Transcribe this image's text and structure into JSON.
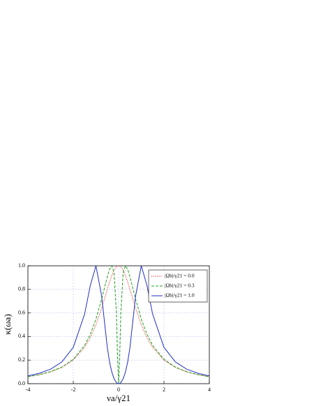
{
  "chart_data": {
    "type": "line",
    "x_label": "νa/γ21",
    "y_label": "κ(ωa)",
    "x": [
      -4,
      -3.5,
      -3,
      -2.5,
      -2,
      -1.5,
      -1.25,
      -1,
      -0.75,
      -0.5,
      -0.4,
      -0.3,
      -0.2,
      -0.1,
      -0.05,
      0,
      0.05,
      0.1,
      0.2,
      0.3,
      0.4,
      0.5,
      0.75,
      1,
      1.25,
      1.5,
      2,
      2.5,
      3,
      3.5,
      4
    ],
    "series": [
      {
        "name": "|Ωb|/γ21 = 0.0",
        "color": "#e03020",
        "style": "dotted",
        "values": [
          0.059,
          0.075,
          0.1,
          0.138,
          0.2,
          0.308,
          0.39,
          0.5,
          0.64,
          0.8,
          0.862,
          0.917,
          0.962,
          0.99,
          0.998,
          1,
          0.998,
          0.99,
          0.962,
          0.917,
          0.862,
          0.8,
          0.64,
          0.5,
          0.39,
          0.308,
          0.2,
          0.138,
          0.1,
          0.075,
          0.059
        ]
      },
      {
        "name": "|Ωb|/γ21 = 0.3",
        "color": "#20a020",
        "style": "dashed",
        "values": [
          0.059,
          0.077,
          0.102,
          0.141,
          0.207,
          0.325,
          0.419,
          0.547,
          0.716,
          0.907,
          0.97,
          1,
          0.941,
          0.61,
          0.246,
          0,
          0.246,
          0.61,
          0.941,
          1,
          0.97,
          0.907,
          0.716,
          0.547,
          0.419,
          0.325,
          0.207,
          0.141,
          0.102,
          0.077,
          0.059
        ]
      },
      {
        "name": "|Ωb|/γ21 = 1.0",
        "color": "#2030c0",
        "style": "solid",
        "values": [
          0.066,
          0.088,
          0.123,
          0.185,
          0.308,
          0.59,
          0.832,
          1,
          0.746,
          0.308,
          0.185,
          0.098,
          0.042,
          0.01,
          0.0025,
          0,
          0.0025,
          0.01,
          0.042,
          0.098,
          0.185,
          0.308,
          0.746,
          1,
          0.832,
          0.59,
          0.308,
          0.185,
          0.123,
          0.088,
          0.066
        ]
      }
    ],
    "xlim": [
      -4,
      4
    ],
    "xticks": [
      -4,
      -2,
      0,
      2,
      4
    ],
    "ylim": [
      0,
      1
    ],
    "yticks": [
      {
        "value": 0,
        "label": "0.0"
      },
      0.2,
      0.4,
      0.6,
      0.8,
      {
        "value": 1,
        "label": "1.0"
      }
    ],
    "grid": true,
    "legend": "upper right"
  }
}
